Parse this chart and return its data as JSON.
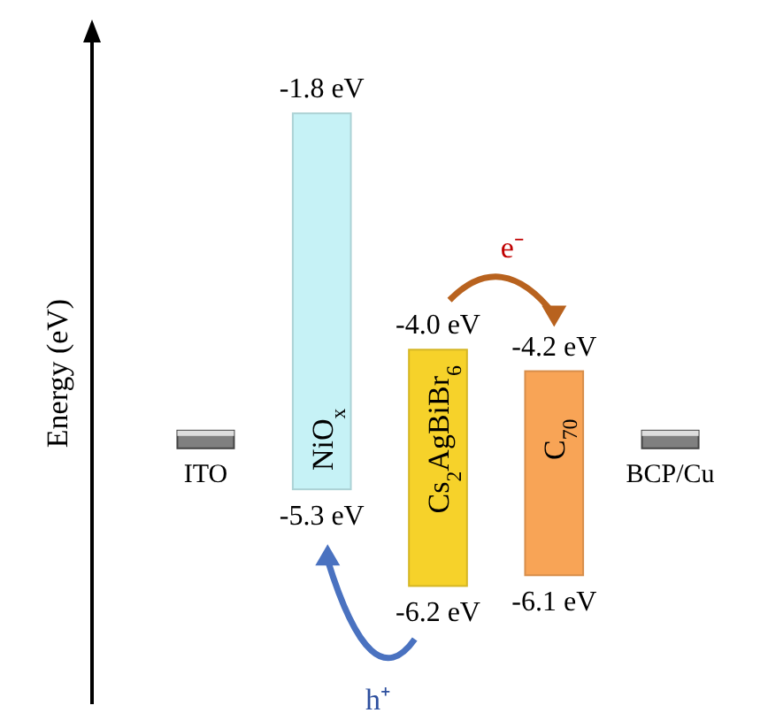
{
  "chart_data": {
    "type": "other",
    "ylabel": "Energy (eV)",
    "categories": [
      "ITO",
      "NiO$_{x}$",
      "Cs$_{2}$AgBiBr$_{6}$",
      "C$_{70}$",
      "BCP/Cu"
    ],
    "series": [
      {
        "values": [
          null,
          -1.8,
          -4.0,
          -4.2,
          null
        ],
        "value_labels": [
          null,
          "-1.8 eV",
          "-4.0 eV",
          "-4.2 eV",
          null
        ]
      },
      {
        "values": [
          null,
          -5.3,
          -6.2,
          -6.1,
          null
        ],
        "value_labels": [
          null,
          "-5.3 eV",
          "-6.2 eV",
          "-6.1 eV",
          null
        ]
      }
    ],
    "colors": [
      "#808080",
      "#c6f2f6",
      "#f6d22a",
      "#f8a456",
      "#808080"
    ],
    "annotations": [
      "e⁻",
      "h⁺"
    ]
  }
}
